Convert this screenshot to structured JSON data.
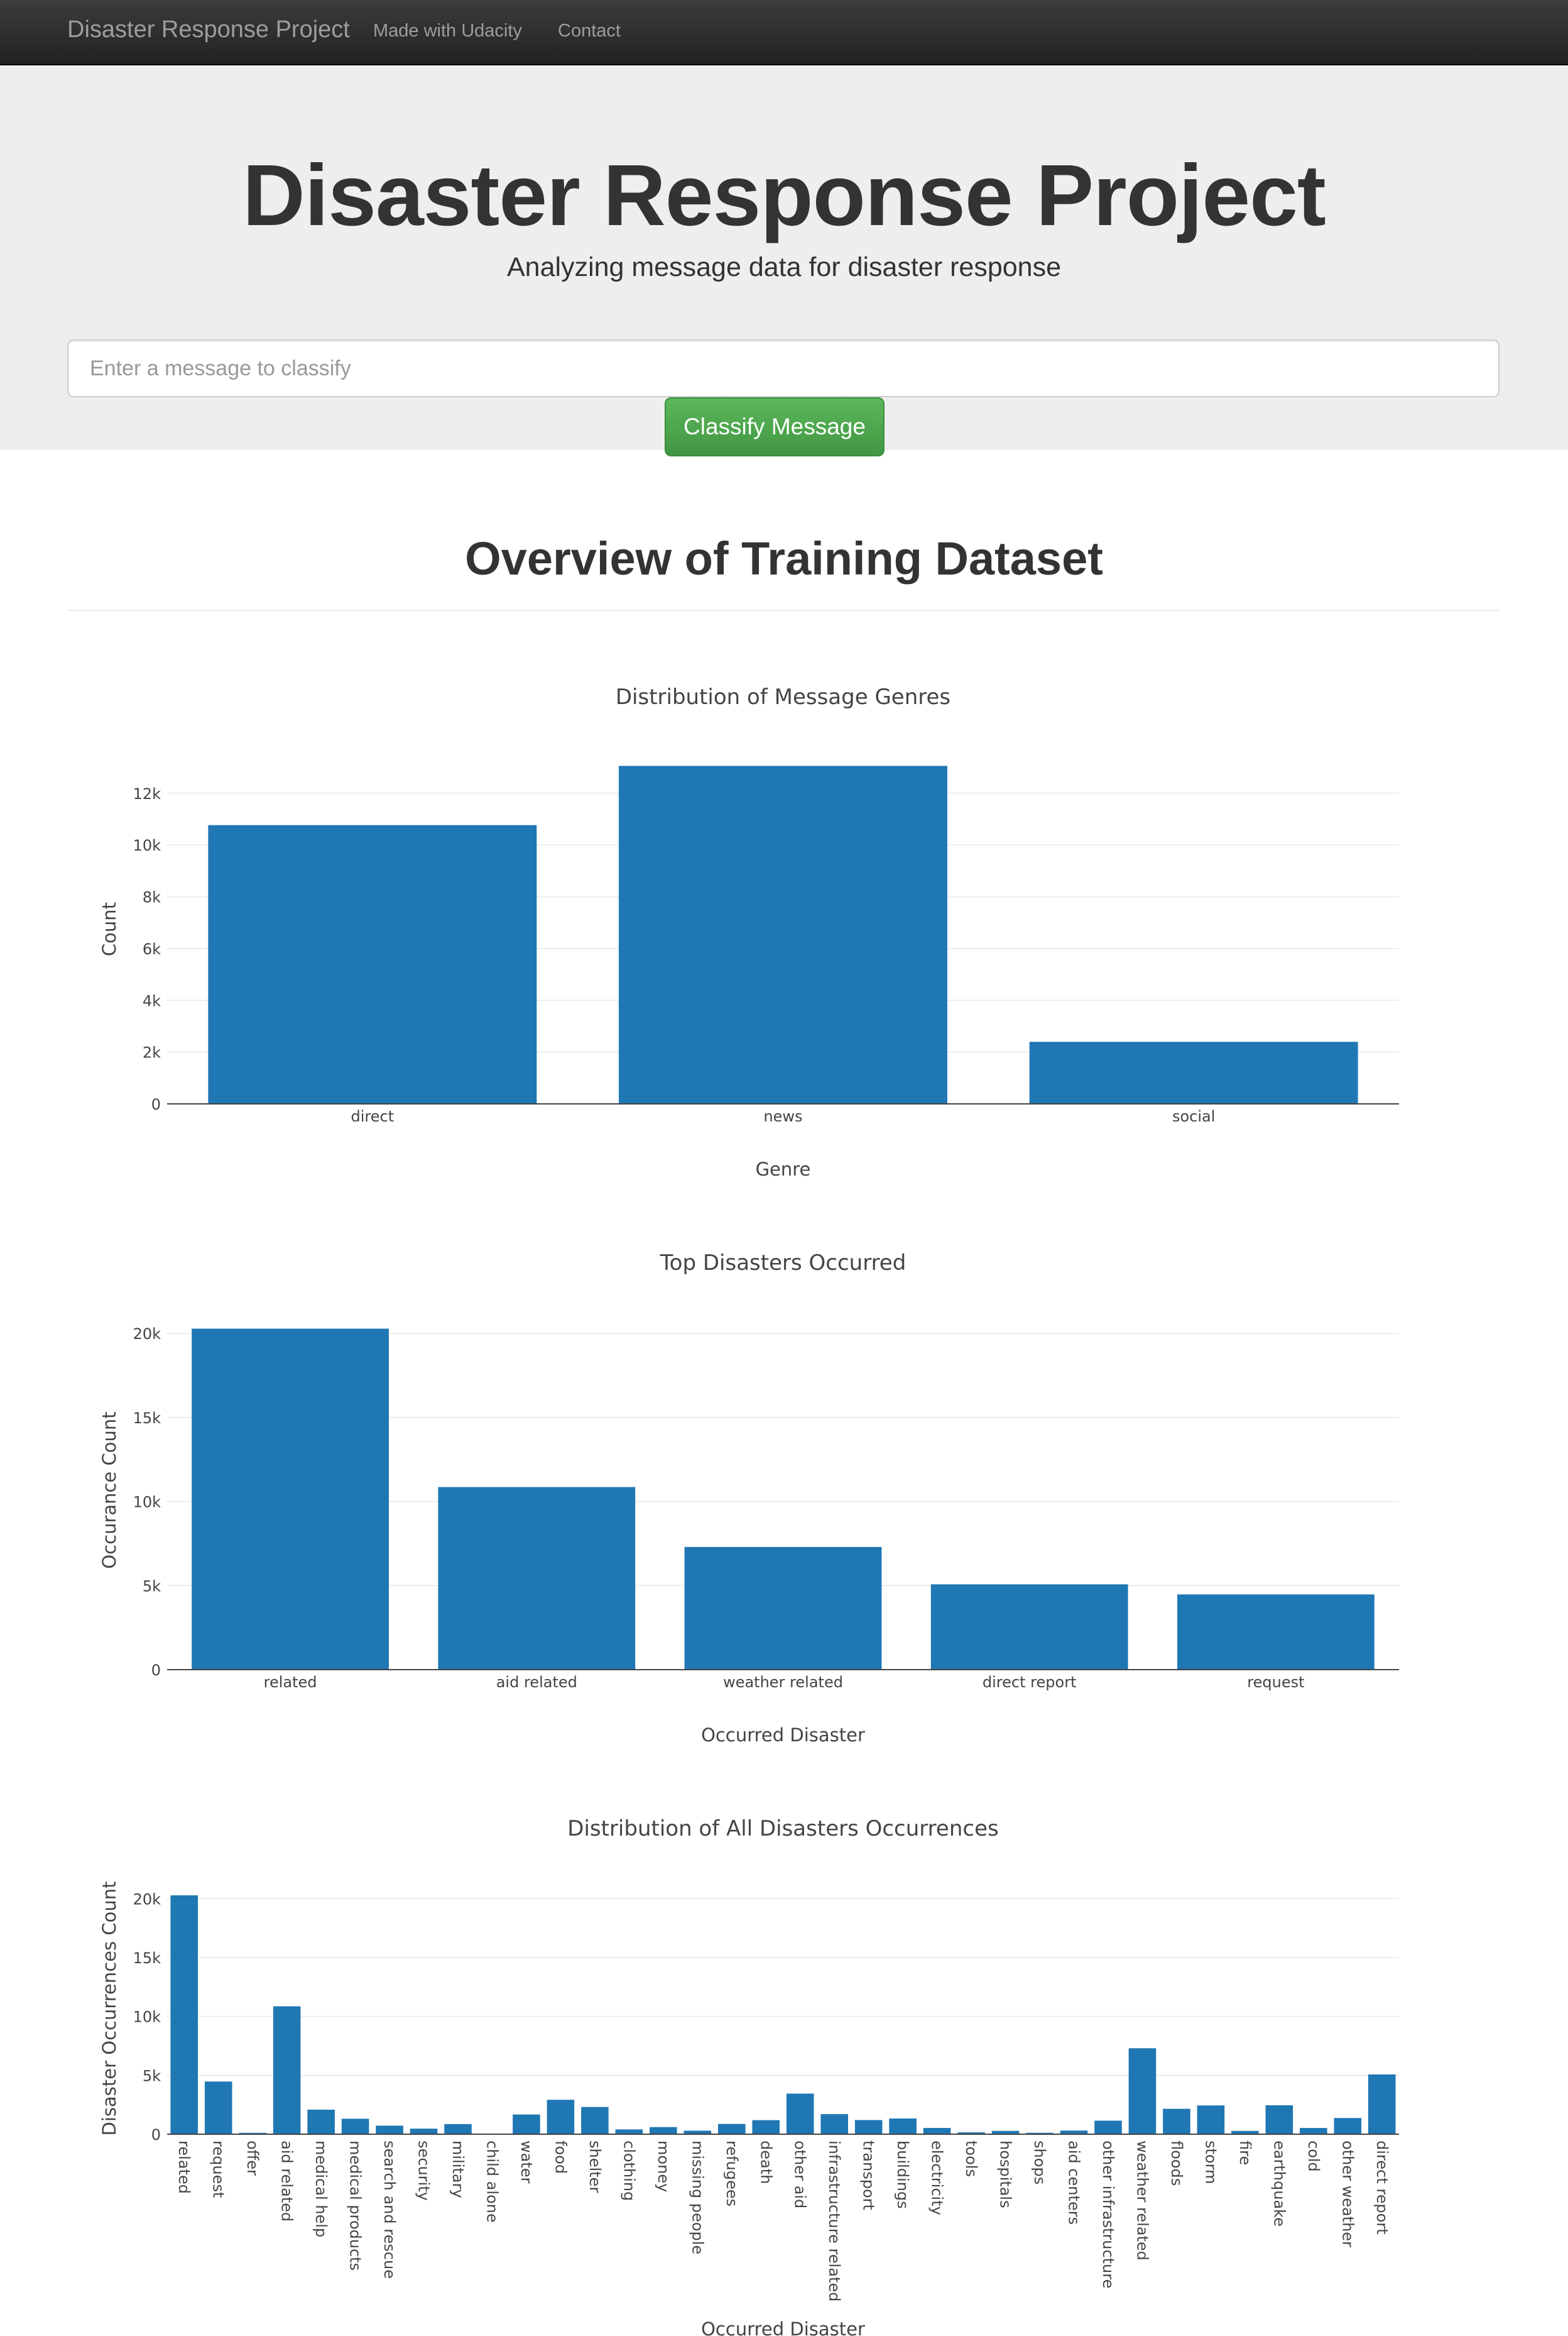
{
  "navbar": {
    "brand": "Disaster Response Project",
    "links": [
      "Made with Udacity",
      "Contact"
    ]
  },
  "jumbotron": {
    "title": "Disaster Response Project",
    "subtitle": "Analyzing message data for disaster response",
    "input_placeholder": "Enter a message to classify",
    "input_value": "",
    "button_label": "Classify Message"
  },
  "section_title": "Overview of Training Dataset",
  "chart_data": [
    {
      "type": "bar",
      "title": "Distribution of Message Genres",
      "xlabel": "Genre",
      "ylabel": "Count",
      "categories": [
        "direct",
        "news",
        "social"
      ],
      "values": [
        10766,
        13054,
        2396
      ],
      "ylim": [
        0,
        13500
      ],
      "yticks": [
        0,
        2000,
        4000,
        6000,
        8000,
        10000,
        12000
      ],
      "ytick_labels": [
        "0",
        "2k",
        "4k",
        "6k",
        "8k",
        "10k",
        "12k"
      ],
      "grid": true,
      "color": "#1f77b4"
    },
    {
      "type": "bar",
      "title": "Top Disasters Occurred",
      "xlabel": "Occurred Disaster",
      "ylabel": "Occurance Count",
      "categories": [
        "related",
        "aid related",
        "weather related",
        "direct report",
        "request"
      ],
      "values": [
        20282,
        10860,
        7297,
        5075,
        4474
      ],
      "ylim": [
        0,
        21350
      ],
      "yticks": [
        0,
        5000,
        10000,
        15000,
        20000
      ],
      "ytick_labels": [
        "0",
        "5k",
        "10k",
        "15k",
        "20k"
      ],
      "grid": true,
      "color": "#1f77b4"
    },
    {
      "type": "bar",
      "title": "Distribution of All Disasters Occurrences",
      "xlabel": "Occurred Disaster",
      "ylabel": "Disaster Occurrences Count",
      "categories": [
        "related",
        "request",
        "offer",
        "aid related",
        "medical help",
        "medical products",
        "search and rescue",
        "security",
        "military",
        "child alone",
        "water",
        "food",
        "shelter",
        "clothing",
        "money",
        "missing people",
        "refugees",
        "death",
        "other aid",
        "infrastructure related",
        "transport",
        "buildings",
        "electricity",
        "tools",
        "hospitals",
        "shops",
        "aid centers",
        "other infrastructure",
        "weather related",
        "floods",
        "storm",
        "fire",
        "earthquake",
        "cold",
        "other weather",
        "direct report"
      ],
      "values": [
        20282,
        4474,
        118,
        10860,
        2084,
        1313,
        724,
        471,
        860,
        0,
        1672,
        2923,
        2314,
        405,
        604,
        298,
        875,
        1194,
        3446,
        1705,
        1201,
        1333,
        532,
        159,
        283,
        120,
        309,
        1151,
        7297,
        2155,
        2443,
        282,
        2455,
        530,
        1376,
        5075
      ],
      "ylim": [
        0,
        21350
      ],
      "yticks": [
        0,
        5000,
        10000,
        15000,
        20000
      ],
      "ytick_labels": [
        "0",
        "5k",
        "10k",
        "15k",
        "20k"
      ],
      "grid": true,
      "color": "#1f77b4"
    }
  ]
}
